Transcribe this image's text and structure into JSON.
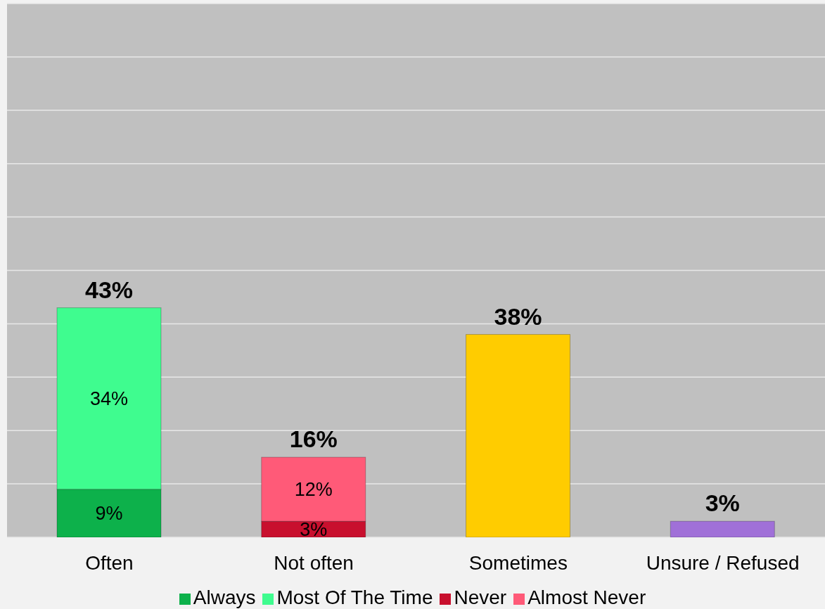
{
  "chart_data": {
    "type": "bar",
    "stacked": true,
    "categories": [
      "Often",
      "Not often",
      "Sometimes",
      "Unsure / Refused"
    ],
    "series": [
      {
        "name": "Always",
        "color": "#0db14b",
        "values": [
          9,
          null,
          null,
          null
        ],
        "value_labels": [
          "9%",
          null,
          null,
          null
        ]
      },
      {
        "name": "Most Of The Time",
        "color": "#3ffc8f",
        "values": [
          34,
          null,
          null,
          null
        ],
        "value_labels": [
          "34%",
          null,
          null,
          null
        ]
      },
      {
        "name": "Never",
        "color": "#c8102e",
        "values": [
          null,
          3,
          null,
          null
        ],
        "value_labels": [
          null,
          "3%",
          null,
          null
        ]
      },
      {
        "name": "Almost Never",
        "color": "#ff5a78",
        "values": [
          null,
          12,
          null,
          null
        ],
        "value_labels": [
          null,
          "12%",
          null,
          null
        ]
      },
      {
        "color": "#ffcc00",
        "values": [
          null,
          null,
          38,
          null
        ]
      },
      {
        "color": "#a070d8",
        "values": [
          null,
          null,
          null,
          3
        ]
      }
    ],
    "totals": [
      "43%",
      "16%",
      "38%",
      "3%"
    ],
    "ylim": [
      0,
      100
    ],
    "yticks": [
      {
        "value": 0,
        "label": null
      },
      {
        "value": 10,
        "label": null
      },
      {
        "value": 20,
        "label": null
      },
      {
        "value": 30,
        "label": null
      },
      {
        "value": 40,
        "label": null
      },
      {
        "value": 50,
        "label": null
      },
      {
        "value": 60,
        "label": null
      },
      {
        "value": 70,
        "label": null
      },
      {
        "value": 80,
        "label": null
      },
      {
        "value": 90,
        "label": null
      },
      {
        "value": 100,
        "label": null
      }
    ],
    "tick_labels": "x",
    "grid": "y",
    "legend": "bottom"
  }
}
